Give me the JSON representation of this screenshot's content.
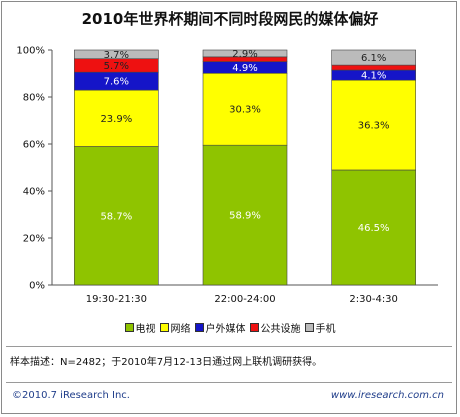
{
  "chart_data": {
    "type": "bar",
    "stacked": true,
    "title": "2010年世界杯期间不同时段网民的媒体偏好",
    "categories": [
      "19:30-21:30",
      "22:00-24:00",
      "2:30-4:30"
    ],
    "series": [
      {
        "name": "电视",
        "color": "#8fc400",
        "values": [
          58.7,
          58.9,
          46.5
        ],
        "labels": [
          "58.7%",
          "58.9%",
          "46.5%"
        ]
      },
      {
        "name": "网络",
        "color": "#ffff00",
        "values": [
          23.9,
          30.3,
          36.3
        ],
        "labels": [
          "23.9%",
          "30.3%",
          "36.3%"
        ]
      },
      {
        "name": "户外媒体",
        "color": "#1515c8",
        "values": [
          7.6,
          4.9,
          4.1
        ],
        "labels": [
          "7.6%",
          "4.9%",
          "4.1%"
        ]
      },
      {
        "name": "公共设施",
        "color": "#ee1111",
        "values": [
          5.7,
          2.0,
          2.0
        ],
        "labels": [
          "5.7%",
          "",
          ""
        ]
      },
      {
        "name": "手机",
        "color": "#bbbbbb",
        "values": [
          3.7,
          2.9,
          6.1
        ],
        "labels": [
          "3.7%",
          "2.9%",
          "6.1%"
        ]
      }
    ],
    "yticks": [
      "0%",
      "20%",
      "40%",
      "60%",
      "80%",
      "100%"
    ],
    "ylim": [
      0,
      100
    ],
    "legend_position": "bottom"
  },
  "note": "样本描述：N=2482；于2010年7月12-13日通过网上联机调研获得。",
  "footer": {
    "copyright": "©2010.7 iResearch Inc.",
    "website": "www.iresearch.com.cn"
  }
}
